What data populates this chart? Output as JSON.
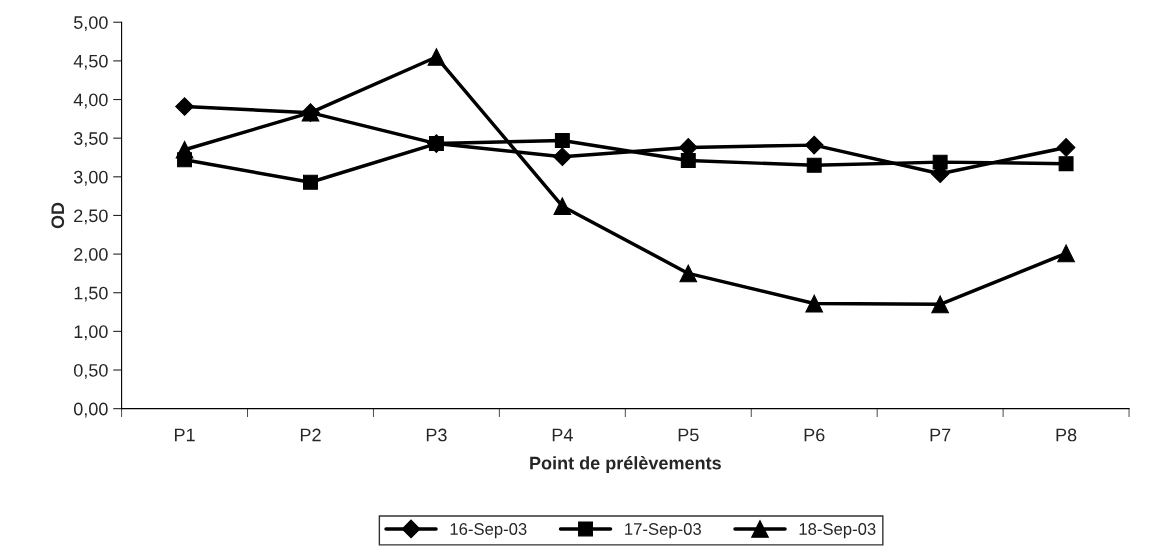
{
  "chart_data": {
    "type": "line",
    "xlabel": "Point de prélèvements",
    "ylabel": "OD",
    "categories": [
      "P1",
      "P2",
      "P3",
      "P4",
      "P5",
      "P6",
      "P7",
      "P8"
    ],
    "series": [
      {
        "name": "16-Sep-03",
        "color": "#000000",
        "marker": "diamond",
        "values": [
          3.91,
          3.83,
          3.43,
          3.26,
          3.38,
          3.41,
          3.04,
          3.38
        ]
      },
      {
        "name": "17-Sep-03",
        "color": "#000000",
        "marker": "square",
        "values": [
          3.22,
          2.93,
          3.43,
          3.47,
          3.21,
          3.15,
          3.19,
          3.17
        ]
      },
      {
        "name": "18-Sep-03",
        "color": "#000000",
        "marker": "triangle",
        "values": [
          3.35,
          3.83,
          4.55,
          2.62,
          1.75,
          1.36,
          1.35,
          2.01
        ]
      }
    ],
    "ylim": [
      0,
      5
    ],
    "yticks": [
      {
        "value": 0,
        "label": "0,00"
      },
      {
        "value": 0.5,
        "label": "0,50"
      },
      {
        "value": 1,
        "label": "1,00"
      },
      {
        "value": 1.5,
        "label": "1,50"
      },
      {
        "value": 2,
        "label": "2,00"
      },
      {
        "value": 2.5,
        "label": "2,50"
      },
      {
        "value": 3,
        "label": "3,00"
      },
      {
        "value": 3.5,
        "label": "3,50"
      },
      {
        "value": 4,
        "label": "4,00"
      },
      {
        "value": 4.5,
        "label": "4,50"
      },
      {
        "value": 5,
        "label": "5,00"
      }
    ],
    "grid": false,
    "legend": "bottom",
    "line_style": "solid"
  }
}
